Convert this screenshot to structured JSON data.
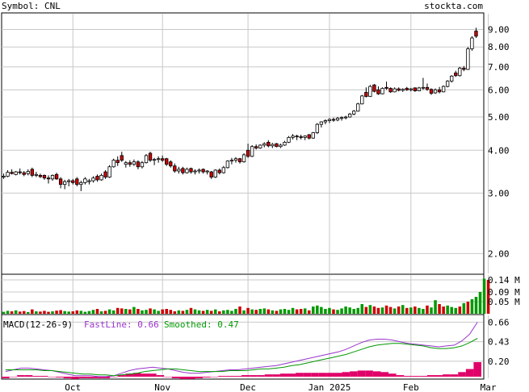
{
  "header": {
    "symbol_label": "Symbol: CNL",
    "site_label": "stockta.com"
  },
  "colors": {
    "grid": "#c8c8c8",
    "frame": "#000000",
    "up_candle_fill": "#ffffff",
    "down_candle_fill": "#cc0000",
    "volume_up": "#009900",
    "volume_down": "#cc0000",
    "macd_fast": "#9933cc",
    "macd_smoothed": "#009900",
    "macd_histogram": "#e0006a",
    "text": "#000000"
  },
  "macd": {
    "title": "MACD(12-26-9)",
    "fast_label": "FastLine: 0.66",
    "smoothed_label": "Smoothed: 0.47"
  },
  "chart_data": [
    {
      "type": "candlestick",
      "panel": "price",
      "scale": "log",
      "ylim": [
        1.75,
        10.0
      ],
      "y_ticks": [
        9.0,
        8.0,
        7.0,
        6.0,
        5.0,
        4.0,
        3.0,
        2.0
      ],
      "y_tick_labels": [
        "9.00",
        "8.00",
        "7.00",
        "6.00",
        "5.00",
        "4.00",
        "3.00",
        "2.00"
      ],
      "x_ticks": [
        {
          "label": "Oct",
          "index": 17
        },
        {
          "label": "Nov",
          "index": 39
        },
        {
          "label": "Dec",
          "index": 60
        },
        {
          "label": "Jan 2025",
          "index": 80
        },
        {
          "label": "Feb",
          "index": 100
        },
        {
          "label": "Mar",
          "index": 119
        }
      ],
      "ohlc": [
        [
          3.34,
          3.42,
          3.3,
          3.36
        ],
        [
          3.36,
          3.5,
          3.34,
          3.45
        ],
        [
          3.45,
          3.52,
          3.4,
          3.42
        ],
        [
          3.4,
          3.48,
          3.38,
          3.46
        ],
        [
          3.46,
          3.54,
          3.4,
          3.44
        ],
        [
          3.44,
          3.48,
          3.36,
          3.4
        ],
        [
          3.42,
          3.52,
          3.38,
          3.47
        ],
        [
          3.52,
          3.56,
          3.34,
          3.38
        ],
        [
          3.38,
          3.46,
          3.34,
          3.4
        ],
        [
          3.38,
          3.42,
          3.32,
          3.35
        ],
        [
          3.38,
          3.4,
          3.28,
          3.32
        ],
        [
          3.32,
          3.38,
          3.2,
          3.3
        ],
        [
          3.3,
          3.4,
          3.26,
          3.38
        ],
        [
          3.4,
          3.44,
          3.28,
          3.3
        ],
        [
          3.3,
          3.34,
          3.1,
          3.18
        ],
        [
          3.18,
          3.28,
          3.08,
          3.24
        ],
        [
          3.24,
          3.3,
          3.14,
          3.26
        ],
        [
          3.26,
          3.3,
          3.18,
          3.22
        ],
        [
          3.3,
          3.34,
          3.14,
          3.18
        ],
        [
          3.18,
          3.26,
          3.04,
          3.22
        ],
        [
          3.22,
          3.34,
          3.18,
          3.3
        ],
        [
          3.24,
          3.3,
          3.18,
          3.26
        ],
        [
          3.26,
          3.36,
          3.22,
          3.32
        ],
        [
          3.36,
          3.4,
          3.24,
          3.28
        ],
        [
          3.28,
          3.42,
          3.26,
          3.38
        ],
        [
          3.46,
          3.5,
          3.3,
          3.34
        ],
        [
          3.34,
          3.62,
          3.32,
          3.58
        ],
        [
          3.58,
          3.78,
          3.56,
          3.74
        ],
        [
          3.74,
          3.84,
          3.6,
          3.68
        ],
        [
          3.86,
          3.96,
          3.7,
          3.74
        ],
        [
          3.64,
          3.72,
          3.56,
          3.68
        ],
        [
          3.68,
          3.74,
          3.58,
          3.64
        ],
        [
          3.64,
          3.76,
          3.6,
          3.7
        ],
        [
          3.7,
          3.74,
          3.52,
          3.58
        ],
        [
          3.58,
          3.72,
          3.54,
          3.68
        ],
        [
          3.68,
          3.9,
          3.66,
          3.86
        ],
        [
          3.92,
          3.96,
          3.7,
          3.74
        ],
        [
          3.74,
          3.8,
          3.62,
          3.76
        ],
        [
          3.76,
          3.84,
          3.68,
          3.78
        ],
        [
          3.78,
          3.86,
          3.7,
          3.74
        ],
        [
          3.78,
          3.8,
          3.6,
          3.64
        ],
        [
          3.7,
          3.74,
          3.56,
          3.6
        ],
        [
          3.6,
          3.66,
          3.44,
          3.48
        ],
        [
          3.48,
          3.58,
          3.42,
          3.52
        ],
        [
          3.54,
          3.58,
          3.4,
          3.44
        ],
        [
          3.44,
          3.56,
          3.42,
          3.52
        ],
        [
          3.54,
          3.56,
          3.42,
          3.46
        ],
        [
          3.46,
          3.52,
          3.4,
          3.48
        ],
        [
          3.48,
          3.54,
          3.42,
          3.5
        ],
        [
          3.52,
          3.54,
          3.42,
          3.46
        ],
        [
          3.46,
          3.5,
          3.4,
          3.48
        ],
        [
          3.46,
          3.48,
          3.3,
          3.34
        ],
        [
          3.34,
          3.52,
          3.32,
          3.5
        ],
        [
          3.5,
          3.54,
          3.4,
          3.44
        ],
        [
          3.44,
          3.6,
          3.42,
          3.56
        ],
        [
          3.56,
          3.74,
          3.54,
          3.72
        ],
        [
          3.72,
          3.8,
          3.64,
          3.74
        ],
        [
          3.74,
          3.82,
          3.68,
          3.78
        ],
        [
          3.78,
          3.8,
          3.66,
          3.7
        ],
        [
          3.7,
          3.92,
          3.68,
          3.88
        ],
        [
          4.0,
          4.18,
          3.8,
          3.84
        ],
        [
          3.84,
          4.14,
          3.82,
          4.1
        ],
        [
          4.1,
          4.16,
          4.02,
          4.06
        ],
        [
          4.06,
          4.16,
          4.04,
          4.14
        ],
        [
          4.14,
          4.22,
          4.08,
          4.18
        ],
        [
          4.22,
          4.28,
          4.08,
          4.12
        ],
        [
          4.12,
          4.2,
          4.06,
          4.16
        ],
        [
          4.18,
          4.2,
          4.08,
          4.1
        ],
        [
          4.1,
          4.18,
          4.06,
          4.14
        ],
        [
          4.14,
          4.26,
          4.12,
          4.22
        ],
        [
          4.22,
          4.4,
          4.2,
          4.36
        ],
        [
          4.36,
          4.46,
          4.3,
          4.4
        ],
        [
          4.4,
          4.44,
          4.28,
          4.38
        ],
        [
          4.38,
          4.44,
          4.3,
          4.36
        ],
        [
          4.36,
          4.42,
          4.28,
          4.4
        ],
        [
          4.44,
          4.46,
          4.3,
          4.34
        ],
        [
          4.34,
          4.52,
          4.32,
          4.5
        ],
        [
          4.5,
          4.8,
          4.46,
          4.76
        ],
        [
          4.76,
          4.86,
          4.66,
          4.84
        ],
        [
          4.84,
          4.92,
          4.76,
          4.88
        ],
        [
          4.88,
          4.96,
          4.8,
          4.92
        ],
        [
          4.92,
          4.98,
          4.84,
          4.9
        ],
        [
          4.9,
          5.0,
          4.86,
          4.96
        ],
        [
          4.96,
          5.02,
          4.88,
          4.98
        ],
        [
          4.98,
          5.04,
          4.92,
          5.0
        ],
        [
          5.0,
          5.14,
          4.98,
          5.1
        ],
        [
          5.1,
          5.24,
          5.06,
          5.2
        ],
        [
          5.2,
          5.5,
          5.18,
          5.46
        ],
        [
          5.46,
          5.8,
          5.44,
          5.76
        ],
        [
          5.9,
          6.1,
          5.7,
          5.74
        ],
        [
          5.74,
          6.2,
          5.72,
          6.14
        ],
        [
          6.2,
          6.24,
          5.9,
          5.94
        ],
        [
          6.0,
          6.14,
          5.8,
          5.84
        ],
        [
          5.84,
          6.1,
          5.82,
          6.06
        ],
        [
          6.1,
          6.34,
          6.0,
          6.06
        ],
        [
          6.06,
          6.1,
          5.88,
          5.92
        ],
        [
          5.92,
          6.1,
          5.9,
          6.04
        ],
        [
          6.04,
          6.1,
          5.94,
          5.98
        ],
        [
          5.98,
          6.06,
          5.92,
          6.02
        ],
        [
          6.06,
          6.12,
          5.96,
          6.0
        ],
        [
          6.0,
          6.08,
          5.94,
          6.04
        ],
        [
          6.08,
          6.1,
          5.92,
          5.96
        ],
        [
          5.96,
          6.12,
          5.94,
          6.08
        ],
        [
          6.08,
          6.5,
          6.0,
          6.1
        ],
        [
          6.1,
          6.26,
          5.96,
          6.02
        ],
        [
          6.02,
          6.06,
          5.8,
          5.86
        ],
        [
          5.88,
          6.06,
          5.84,
          6.0
        ],
        [
          6.0,
          6.12,
          5.86,
          5.92
        ],
        [
          5.92,
          6.18,
          5.9,
          6.14
        ],
        [
          6.14,
          6.4,
          6.1,
          6.36
        ],
        [
          6.36,
          6.62,
          6.3,
          6.58
        ],
        [
          6.72,
          6.82,
          6.54,
          6.6
        ],
        [
          6.6,
          7.0,
          6.56,
          6.94
        ],
        [
          6.94,
          7.04,
          6.8,
          6.88
        ],
        [
          6.88,
          8.0,
          6.86,
          7.9
        ],
        [
          7.9,
          8.6,
          7.8,
          8.5
        ],
        [
          8.9,
          9.1,
          8.5,
          8.6
        ]
      ]
    },
    {
      "type": "bar",
      "panel": "volume",
      "unit": "M",
      "ylim": [
        0,
        0.16
      ],
      "y_ticks": [
        0.14,
        0.09,
        0.05
      ],
      "y_tick_labels": [
        "0.14 M",
        "0.09 M",
        "0.05 M"
      ],
      "values": [
        0.008,
        0.012,
        0.01,
        0.014,
        0.009,
        0.011,
        0.007,
        0.018,
        0.01,
        0.009,
        0.012,
        0.008,
        0.01,
        0.013,
        0.015,
        0.011,
        0.009,
        0.01,
        0.014,
        0.012,
        0.008,
        0.011,
        0.016,
        0.02,
        0.01,
        0.012,
        0.018,
        0.014,
        0.024,
        0.022,
        0.02,
        0.018,
        0.028,
        0.02,
        0.014,
        0.016,
        0.022,
        0.018,
        0.012,
        0.018,
        0.02,
        0.016,
        0.01,
        0.014,
        0.012,
        0.016,
        0.024,
        0.018,
        0.014,
        0.012,
        0.016,
        0.012,
        0.018,
        0.01,
        0.014,
        0.016,
        0.012,
        0.02,
        0.03,
        0.014,
        0.024,
        0.018,
        0.016,
        0.02,
        0.022,
        0.018,
        0.014,
        0.012,
        0.018,
        0.02,
        0.016,
        0.024,
        0.018,
        0.02,
        0.022,
        0.014,
        0.03,
        0.034,
        0.028,
        0.02,
        0.024,
        0.018,
        0.016,
        0.022,
        0.03,
        0.026,
        0.02,
        0.024,
        0.04,
        0.028,
        0.036,
        0.03,
        0.024,
        0.026,
        0.034,
        0.028,
        0.022,
        0.03,
        0.036,
        0.024,
        0.026,
        0.03,
        0.024,
        0.02,
        0.034,
        0.026,
        0.056,
        0.04,
        0.03,
        0.034,
        0.028,
        0.024,
        0.03,
        0.044,
        0.05,
        0.06,
        0.07,
        0.09,
        0.145,
        0.14
      ],
      "up": [
        true,
        true,
        false,
        true,
        false,
        false,
        true,
        false,
        true,
        false,
        false,
        false,
        true,
        false,
        false,
        true,
        true,
        false,
        false,
        true,
        true,
        true,
        true,
        false,
        true,
        false,
        true,
        true,
        false,
        false,
        true,
        false,
        true,
        false,
        true,
        true,
        false,
        true,
        true,
        false,
        false,
        false,
        false,
        true,
        false,
        true,
        false,
        true,
        true,
        false,
        true,
        false,
        true,
        false,
        true,
        true,
        true,
        true,
        false,
        true,
        false,
        true,
        false,
        true,
        true,
        false,
        true,
        false,
        true,
        true,
        true,
        true,
        false,
        false,
        true,
        false,
        true,
        true,
        true,
        true,
        true,
        false,
        true,
        true,
        true,
        true,
        true,
        true,
        true,
        false,
        true,
        false,
        false,
        true,
        false,
        false,
        true,
        false,
        true,
        false,
        true,
        false,
        true,
        true,
        false,
        true,
        true,
        false,
        false,
        true,
        true,
        true,
        false,
        true,
        false,
        true,
        true,
        true,
        true,
        false
      ]
    },
    {
      "type": "line",
      "panel": "macd",
      "ylim": [
        0.0,
        0.74
      ],
      "y_ticks": [
        0.66,
        0.43,
        0.2
      ],
      "y_tick_labels": [
        "0.66",
        "0.43",
        "0.20"
      ],
      "series": [
        {
          "name": "FastLine",
          "values": [
            0.08,
            0.1,
            0.12,
            0.12,
            0.11,
            0.1,
            0.09,
            0.07,
            0.05,
            0.03,
            0.03,
            0.03,
            0.02,
            0.02,
            0.03,
            0.06,
            0.09,
            0.11,
            0.12,
            0.13,
            0.12,
            0.11,
            0.09,
            0.07,
            0.06,
            0.06,
            0.07,
            0.08,
            0.09,
            0.1,
            0.1,
            0.11,
            0.12,
            0.13,
            0.14,
            0.15,
            0.17,
            0.19,
            0.21,
            0.23,
            0.25,
            0.27,
            0.29,
            0.31,
            0.34,
            0.38,
            0.42,
            0.45,
            0.46,
            0.46,
            0.45,
            0.43,
            0.41,
            0.4,
            0.39,
            0.38,
            0.37,
            0.38,
            0.39,
            0.44,
            0.52,
            0.66
          ]
        },
        {
          "name": "Smoothed",
          "values": [
            0.1,
            0.1,
            0.1,
            0.1,
            0.1,
            0.09,
            0.09,
            0.08,
            0.07,
            0.06,
            0.05,
            0.05,
            0.04,
            0.04,
            0.03,
            0.04,
            0.05,
            0.06,
            0.08,
            0.09,
            0.1,
            0.11,
            0.11,
            0.1,
            0.09,
            0.08,
            0.08,
            0.08,
            0.08,
            0.09,
            0.09,
            0.09,
            0.1,
            0.11,
            0.11,
            0.12,
            0.13,
            0.15,
            0.16,
            0.18,
            0.2,
            0.22,
            0.24,
            0.26,
            0.28,
            0.31,
            0.34,
            0.37,
            0.39,
            0.4,
            0.41,
            0.41,
            0.4,
            0.39,
            0.38,
            0.36,
            0.35,
            0.35,
            0.36,
            0.38,
            0.42,
            0.47
          ]
        }
      ],
      "histogram": {
        "name": "MACD histogram",
        "values": [
          -0.02,
          0.0,
          0.02,
          0.02,
          0.01,
          0.01,
          0.0,
          -0.01,
          -0.02,
          -0.03,
          -0.02,
          -0.02,
          -0.02,
          -0.02,
          0.0,
          0.02,
          0.04,
          0.05,
          0.04,
          0.04,
          0.02,
          0.0,
          -0.02,
          -0.03,
          -0.03,
          -0.02,
          -0.01,
          0.0,
          0.01,
          0.01,
          0.01,
          0.02,
          0.02,
          0.02,
          0.03,
          0.03,
          0.04,
          0.04,
          0.05,
          0.05,
          0.05,
          0.05,
          0.05,
          0.05,
          0.06,
          0.07,
          0.08,
          0.08,
          0.07,
          0.06,
          0.04,
          0.02,
          0.01,
          0.01,
          0.01,
          0.02,
          0.02,
          0.03,
          0.03,
          0.06,
          0.1,
          0.19
        ]
      }
    }
  ]
}
